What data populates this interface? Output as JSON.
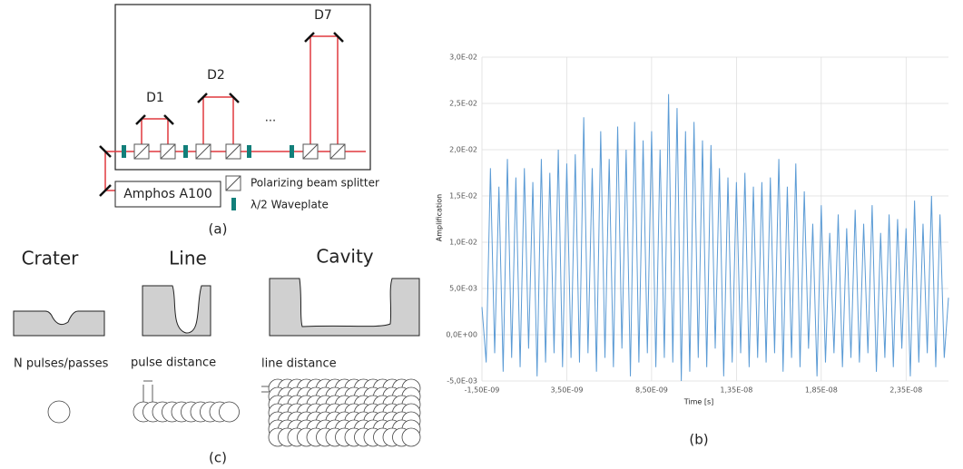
{
  "diagram_a": {
    "labels": [
      "D1",
      "D2",
      "D7"
    ],
    "ellipsis": "...",
    "source": "Amphos A100",
    "legend": [
      "Polarizing beam splitter",
      "λ/2 Waveplate"
    ],
    "caption": "(a)"
  },
  "diagram_c": {
    "titles": [
      "Crater",
      "Line",
      "Cavity"
    ],
    "params": [
      "N pulses/passes",
      "pulse distance",
      "line distance"
    ],
    "caption": "(c)"
  },
  "chart_data": {
    "type": "line",
    "caption": "(b)",
    "x_label": "Time [s]",
    "y_label": "Amplification",
    "color": "#5b9bd5",
    "grid": true,
    "xlim": [
      -1.5e-09,
      2.6e-08
    ],
    "ylim": [
      -0.005,
      0.03
    ],
    "xticks": [
      {
        "value": -1.5e-09,
        "label": "-1,50E-09"
      },
      {
        "value": 3.5e-09,
        "label": "3,50E-09"
      },
      {
        "value": 8.5e-09,
        "label": "8,50E-09"
      },
      {
        "value": 1.35e-08,
        "label": "1,35E-08"
      },
      {
        "value": 1.85e-08,
        "label": "1,85E-08"
      },
      {
        "value": 2.35e-08,
        "label": "2,35E-08"
      }
    ],
    "yticks": [
      {
        "value": -0.005,
        "label": "-5,0E-03"
      },
      {
        "value": 0,
        "label": "0,0E+00"
      },
      {
        "value": 0.005,
        "label": "5,0E-03"
      },
      {
        "value": 0.01,
        "label": "1,0E-02"
      },
      {
        "value": 0.015,
        "label": "1,5E-02"
      },
      {
        "value": 0.02,
        "label": "2,0E-02"
      },
      {
        "value": 0.025,
        "label": "2,5E-02"
      },
      {
        "value": 0.03,
        "label": "3,0E-02"
      }
    ],
    "x": [
      -1.5e-09,
      -1.25e-09,
      -1e-09,
      -7.5e-10,
      -5e-10,
      -2.5e-10,
      0,
      2.5e-10,
      5e-10,
      7.5e-10,
      1e-09,
      1.25e-09,
      1.5e-09,
      1.75e-09,
      2e-09,
      2.25e-09,
      2.5e-09,
      2.75e-09,
      3e-09,
      3.25e-09,
      3.5e-09,
      3.75e-09,
      4e-09,
      4.25e-09,
      4.5e-09,
      4.75e-09,
      5e-09,
      5.25e-09,
      5.5e-09,
      5.75e-09,
      6e-09,
      6.25e-09,
      6.5e-09,
      6.75e-09,
      7e-09,
      7.25e-09,
      7.5e-09,
      7.75e-09,
      8e-09,
      8.25e-09,
      8.5e-09,
      8.75e-09,
      9e-09,
      9.25e-09,
      9.5e-09,
      9.75e-09,
      1e-08,
      1.025e-08,
      1.05e-08,
      1.075e-08,
      1.1e-08,
      1.125e-08,
      1.15e-08,
      1.175e-08,
      1.2e-08,
      1.225e-08,
      1.25e-08,
      1.275e-08,
      1.3e-08,
      1.325e-08,
      1.35e-08,
      1.375e-08,
      1.4e-08,
      1.425e-08,
      1.45e-08,
      1.475e-08,
      1.5e-08,
      1.525e-08,
      1.55e-08,
      1.575e-08,
      1.6e-08,
      1.625e-08,
      1.65e-08,
      1.675e-08,
      1.7e-08,
      1.725e-08,
      1.75e-08,
      1.775e-08,
      1.8e-08,
      1.825e-08,
      1.85e-08,
      1.875e-08,
      1.9e-08,
      1.925e-08,
      1.95e-08,
      1.975e-08,
      2e-08,
      2.025e-08,
      2.05e-08,
      2.075e-08,
      2.1e-08,
      2.125e-08,
      2.15e-08,
      2.175e-08,
      2.2e-08,
      2.225e-08,
      2.25e-08,
      2.275e-08,
      2.3e-08,
      2.325e-08,
      2.35e-08,
      2.375e-08,
      2.4e-08,
      2.425e-08,
      2.45e-08,
      2.475e-08,
      2.5e-08,
      2.525e-08,
      2.55e-08,
      2.575e-08,
      2.6e-08
    ],
    "values": [
      0.003,
      -0.003,
      0.018,
      -0.002,
      0.016,
      -0.004,
      0.019,
      -0.0025,
      0.017,
      -0.0035,
      0.018,
      -0.0015,
      0.0165,
      -0.0045,
      0.019,
      -0.003,
      0.0175,
      -0.002,
      0.02,
      -0.0035,
      0.0185,
      -0.0025,
      0.0195,
      -0.003,
      0.0235,
      -0.002,
      0.018,
      -0.004,
      0.022,
      -0.0025,
      0.019,
      -0.0035,
      0.0225,
      -0.0015,
      0.02,
      -0.0045,
      0.023,
      -0.003,
      0.021,
      -0.002,
      0.022,
      -0.0035,
      0.02,
      -0.0025,
      0.026,
      -0.003,
      0.0245,
      -0.005,
      0.022,
      -0.004,
      0.023,
      -0.0025,
      0.021,
      -0.0035,
      0.0205,
      -0.0015,
      0.018,
      -0.0045,
      0.017,
      -0.003,
      0.0165,
      -0.002,
      0.0175,
      -0.0035,
      0.016,
      -0.0025,
      0.0165,
      -0.003,
      0.017,
      -0.002,
      0.019,
      -0.004,
      0.016,
      -0.0025,
      0.0185,
      -0.0035,
      0.0155,
      -0.0015,
      0.012,
      -0.0045,
      0.014,
      -0.003,
      0.011,
      -0.002,
      0.013,
      -0.0035,
      0.0115,
      -0.0025,
      0.0135,
      -0.003,
      0.012,
      -0.002,
      0.014,
      -0.004,
      0.011,
      -0.0025,
      0.013,
      -0.0035,
      0.0125,
      -0.0015,
      0.0115,
      -0.0045,
      0.0145,
      -0.003,
      0.012,
      -0.002,
      0.015,
      -0.0035,
      0.013,
      -0.0025,
      0.004
    ]
  }
}
